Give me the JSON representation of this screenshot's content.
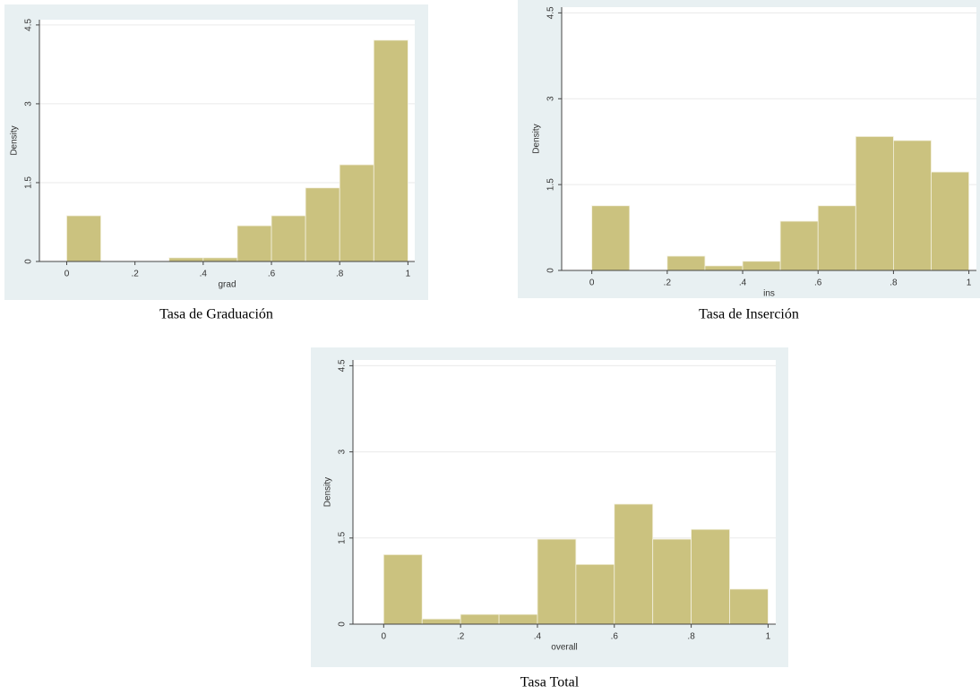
{
  "chart_data": [
    {
      "type": "histogram",
      "caption": "Tasa de Graduación",
      "xlabel": "grad",
      "ylabel": "Density",
      "bins": [
        0,
        0.1,
        0.2,
        0.3,
        0.4,
        0.5,
        0.6,
        0.7,
        0.8,
        0.9,
        1
      ],
      "values": [
        0.87,
        0,
        0,
        0.07,
        0.07,
        0.68,
        0.87,
        1.4,
        1.84,
        4.21
      ],
      "color": "#cbc27f",
      "xlim": [
        -0.08,
        1.02
      ],
      "ylim": [
        0,
        4.6
      ],
      "xticks": [
        0,
        {
          "value": 0.2,
          "label": ".2"
        },
        {
          "value": 0.4,
          "label": ".4"
        },
        {
          "value": 0.6,
          "label": ".6"
        },
        {
          "value": 0.8,
          "label": ".8"
        },
        1
      ],
      "yticks": [
        0,
        1.5,
        3,
        4.5
      ],
      "grid": true
    },
    {
      "type": "histogram",
      "caption": "Tasa de Inserción",
      "xlabel": "ins",
      "ylabel": "Density",
      "bins": [
        0,
        0.1,
        0.2,
        0.3,
        0.4,
        0.5,
        0.6,
        0.7,
        0.8,
        0.9,
        1
      ],
      "values": [
        1.13,
        0,
        0.25,
        0.08,
        0.16,
        0.86,
        1.13,
        2.34,
        2.27,
        1.72
      ],
      "color": "#cbc27f",
      "xlim": [
        -0.08,
        1.02
      ],
      "ylim": [
        0,
        4.6
      ],
      "xticks": [
        0,
        {
          "value": 0.2,
          "label": ".2"
        },
        {
          "value": 0.4,
          "label": ".4"
        },
        {
          "value": 0.6,
          "label": ".6"
        },
        {
          "value": 0.8,
          "label": ".8"
        },
        1
      ],
      "yticks": [
        0,
        1.5,
        3,
        4.5
      ],
      "grid": true
    },
    {
      "type": "histogram",
      "caption": "Tasa Total",
      "xlabel": "overall",
      "ylabel": "Density",
      "bins": [
        0,
        0.1,
        0.2,
        0.3,
        0.4,
        0.5,
        0.6,
        0.7,
        0.8,
        0.9,
        1
      ],
      "values": [
        1.21,
        0.09,
        0.17,
        0.17,
        1.48,
        1.04,
        2.09,
        1.48,
        1.65,
        0.61
      ],
      "color": "#cbc27f",
      "xlim": [
        -0.08,
        1.02
      ],
      "ylim": [
        0,
        4.6
      ],
      "xticks": [
        0,
        {
          "value": 0.2,
          "label": ".2"
        },
        {
          "value": 0.4,
          "label": ".4"
        },
        {
          "value": 0.6,
          "label": ".6"
        },
        {
          "value": 0.8,
          "label": ".8"
        },
        1
      ],
      "yticks": [
        0,
        1.5,
        3,
        4.5
      ],
      "grid": true
    }
  ]
}
